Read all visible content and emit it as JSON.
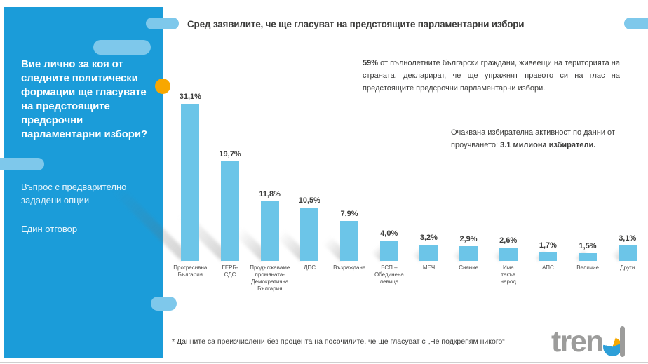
{
  "header": {
    "title": "Сред заявилите, че ще гласуват на предстоящите парламентарни избори"
  },
  "sidebar": {
    "question_lines": [
      "Вие лично за коя от",
      "следните политически",
      "формации ще гласувате",
      "на предстоящите",
      "предсрочни",
      "парламентарни избори?"
    ],
    "note1_lines": [
      "Въпрос с предварително",
      "зададени опции"
    ],
    "note2": "Един отговор"
  },
  "summary": {
    "p1_lead": "59%",
    "p1_text": " от пълнолетните български граждани, живеещи на територията на страната, декларират, че ще упражнят правото си на глас на предстоящите предсрочни парламентарни избори.",
    "p2_text": "Очаквана избирателна активност по данни от проучването: ",
    "p2_bold": "3.1 милиона избиратели."
  },
  "chart_data": {
    "type": "bar",
    "title": "Сред заявилите, че ще гласуват на предстоящите парламентарни избори",
    "categories": [
      "Прогресивна България",
      "ГЕРБ-СДС",
      "Продължаваме промяната-Демократична България",
      "ДПС",
      "Възраждане",
      "БСП – Обединена левица",
      "МЕЧ",
      "Сияние",
      "Има такъв народ",
      "АПС",
      "Величие",
      "Други"
    ],
    "tick_lines": [
      [
        "Прогресивна",
        "България"
      ],
      [
        "ГЕРБ-",
        "СДС"
      ],
      [
        "Продължаваме",
        "промяната-",
        "Демократична",
        "България"
      ],
      [
        "ДПС"
      ],
      [
        "Възраждане"
      ],
      [
        "БСП –",
        "Обединена",
        "левица"
      ],
      [
        "МЕЧ"
      ],
      [
        "Сияние"
      ],
      [
        "Има",
        "такъв",
        "народ"
      ],
      [
        "АПС"
      ],
      [
        "Величие"
      ],
      [
        "Други"
      ]
    ],
    "values": [
      31.1,
      19.7,
      11.8,
      10.5,
      7.9,
      4.0,
      3.2,
      2.9,
      2.6,
      1.7,
      1.5,
      3.1
    ],
    "value_labels": [
      "31,1%",
      "19,7%",
      "11,8%",
      "10,5%",
      "7,9%",
      "4,0%",
      "3,2%",
      "2,9%",
      "2,6%",
      "1,7%",
      "1,5%",
      "3,1%"
    ],
    "xlabel": "",
    "ylabel": "",
    "ylim": [
      0,
      33.6
    ],
    "grid": false,
    "legend": false,
    "bar_color": "#6CC5E8"
  },
  "footnote": "* Данните са преизчислени без процента на посочилите, че ще гласуват с „Не подкрепям никого“",
  "logo": {
    "word_prefix": "tren",
    "name": "trend"
  },
  "colors": {
    "panel_blue": "#1B9CD9",
    "pill_blue": "#7EC8EB",
    "bar_blue": "#6CC5E8",
    "accent_orange": "#F8A700",
    "text_dark": "#3C3C3B",
    "logo_gray": "#9C9C9B"
  }
}
